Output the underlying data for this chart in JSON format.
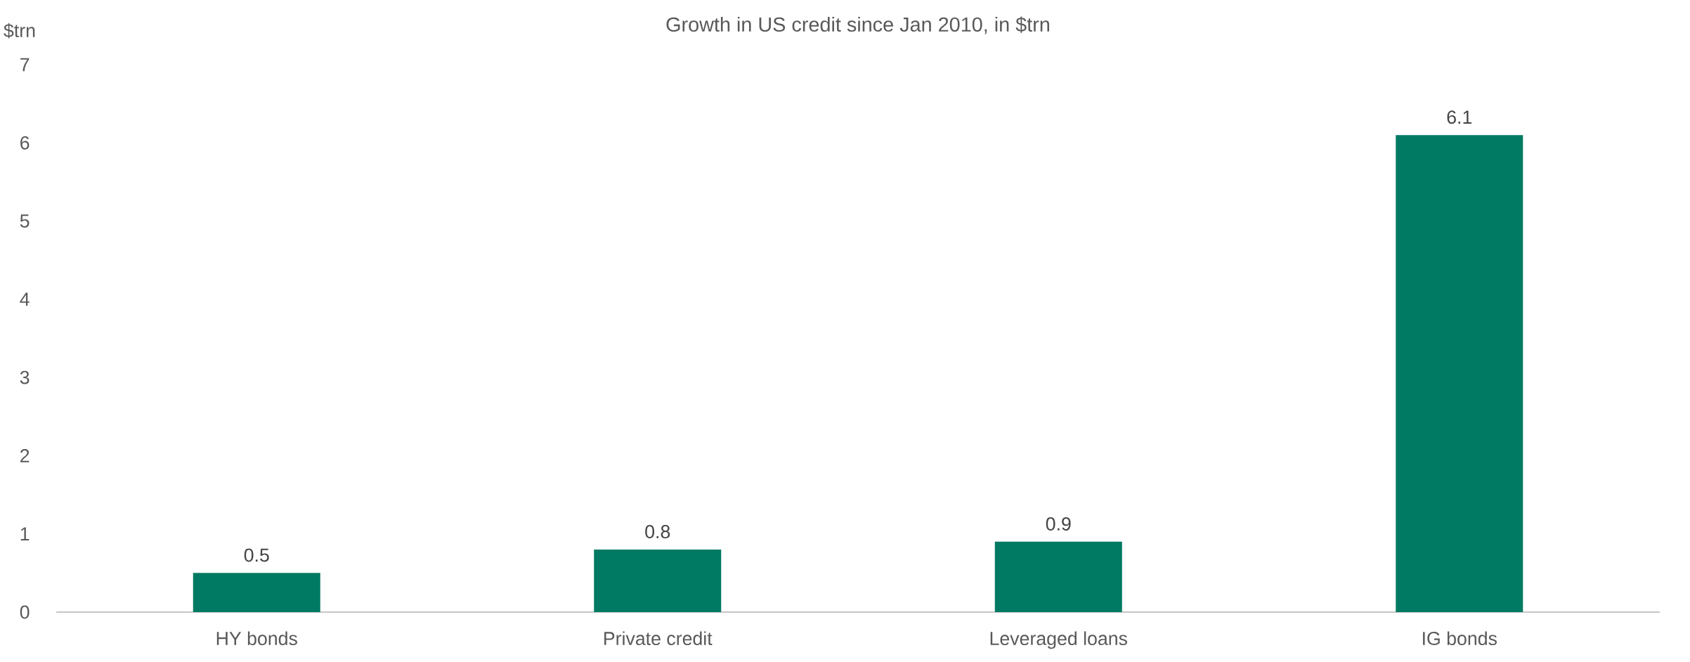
{
  "chart_data": {
    "type": "bar",
    "title": "Growth in US credit since Jan 2010, in $trn",
    "ylabel": "$trn",
    "categories": [
      "HY bonds",
      "Private credit",
      "Leveraged loans",
      "IG bonds"
    ],
    "values": [
      0.5,
      0.8,
      0.9,
      6.1
    ],
    "color": "#007a63",
    "data_labels": true,
    "ylim": [
      0,
      7
    ],
    "yticks": [
      0,
      1,
      2,
      3,
      4,
      5,
      6,
      7
    ],
    "grid": false
  }
}
